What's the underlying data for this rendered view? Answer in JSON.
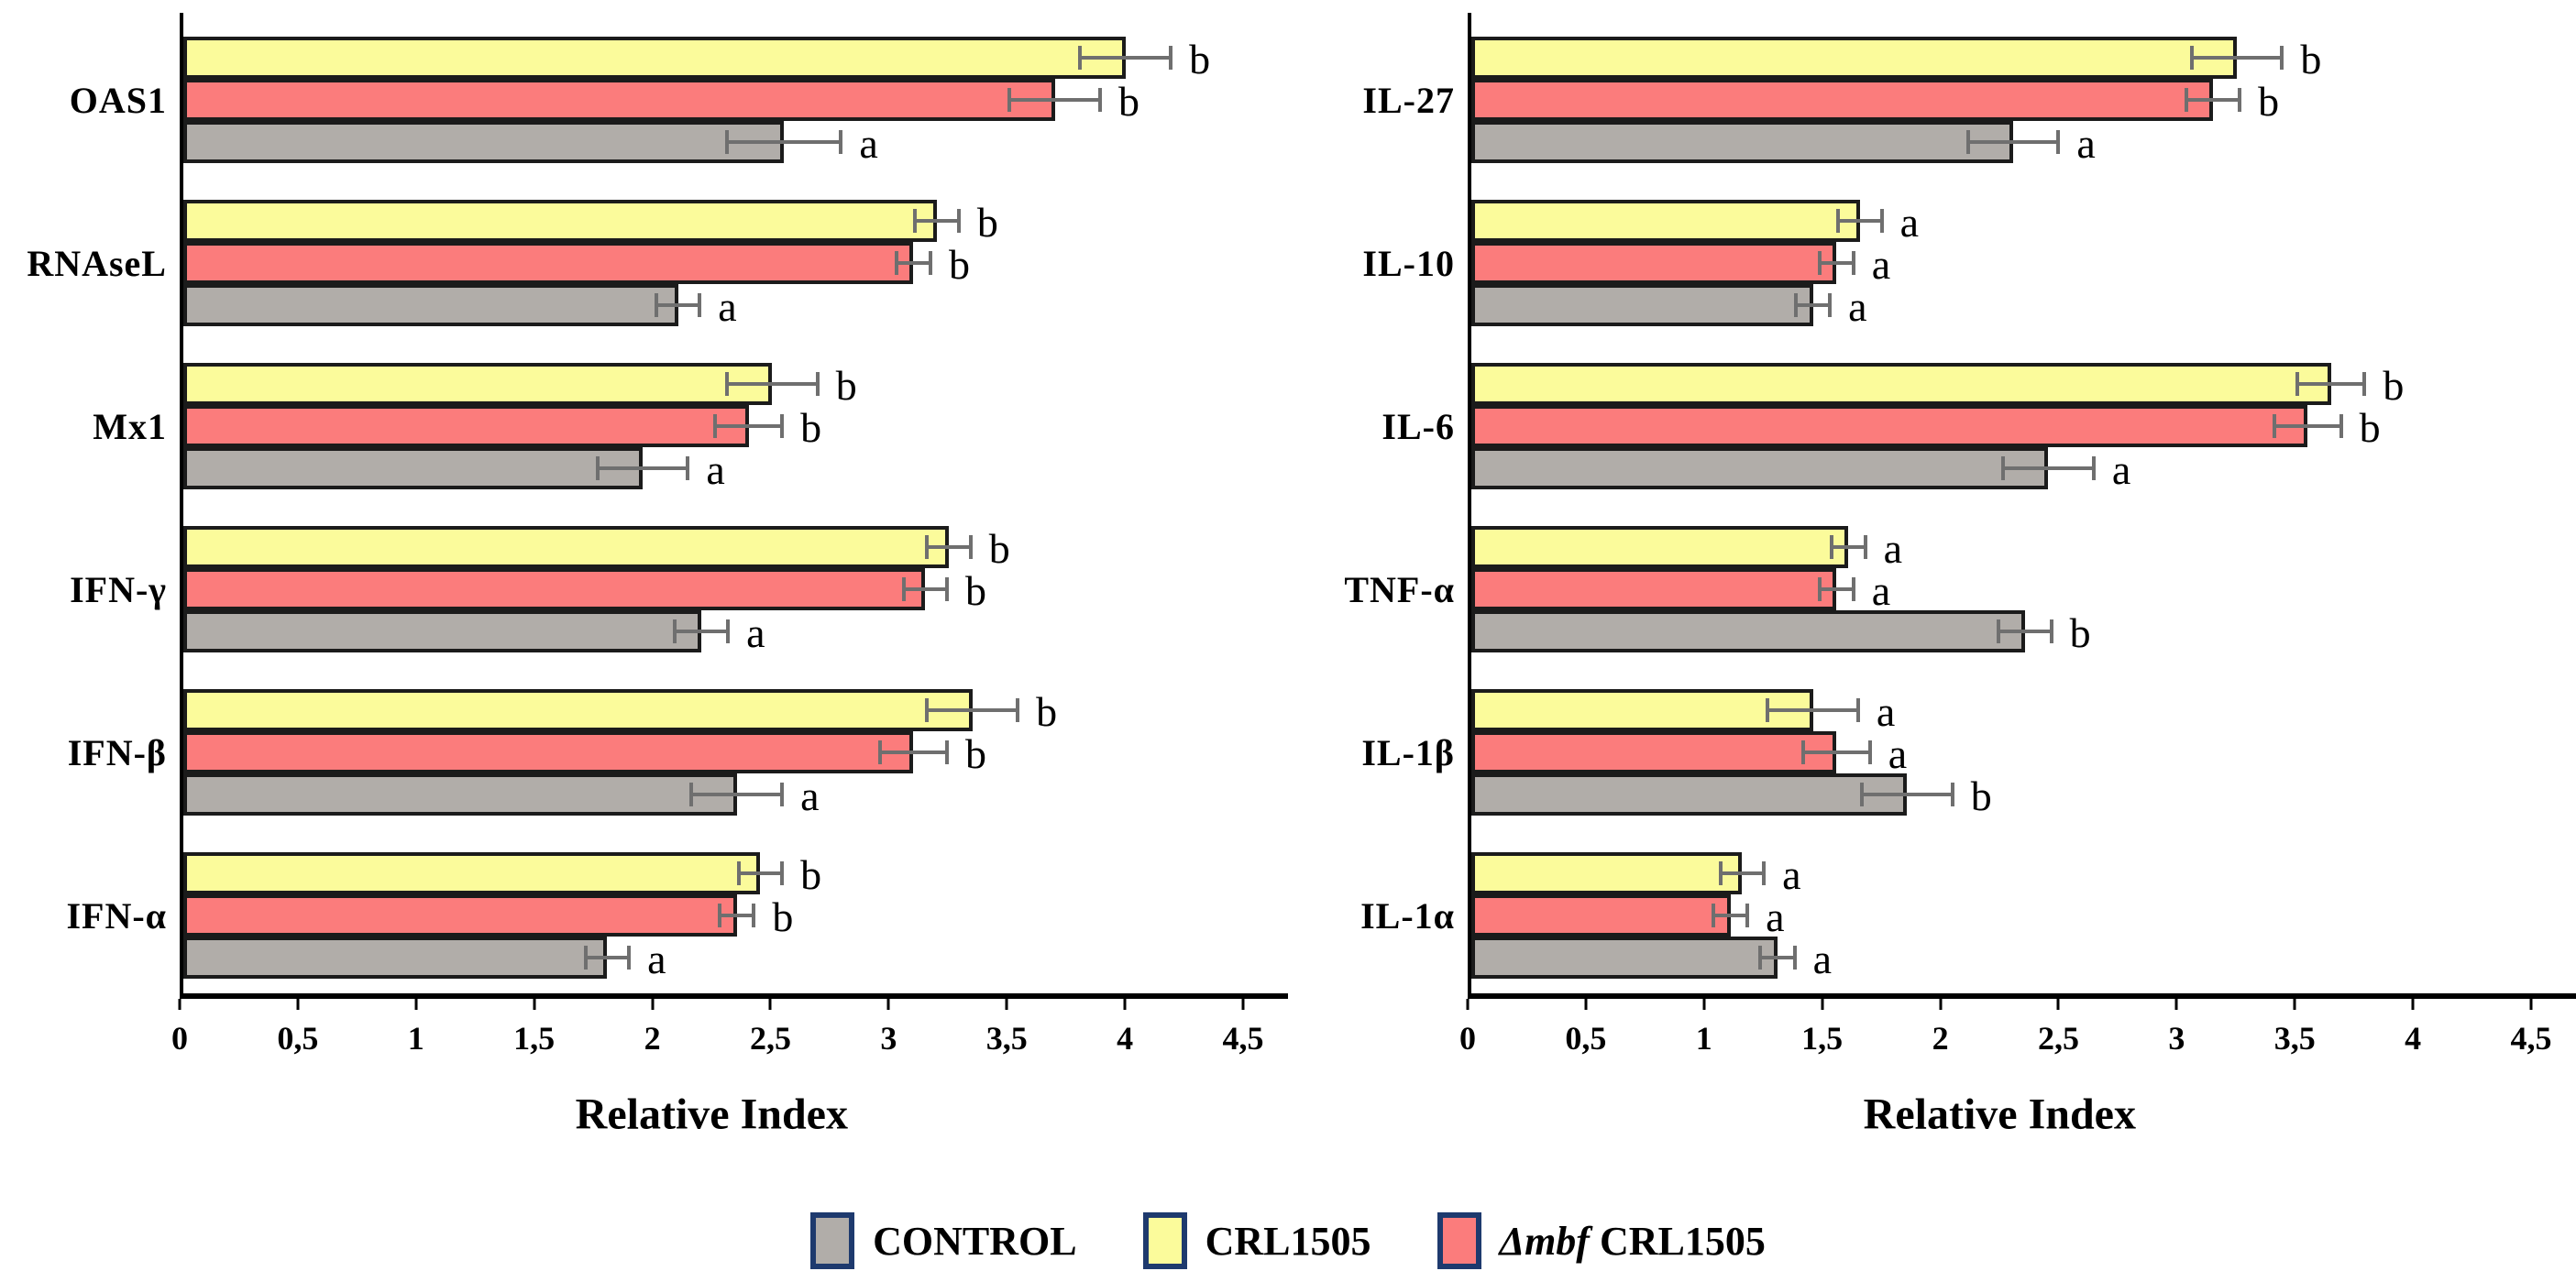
{
  "figure_title": "",
  "axis": {
    "tick_values": [
      0,
      0.5,
      1,
      1.5,
      2,
      2.5,
      3,
      3.5,
      4,
      4.5
    ],
    "xmax": 4.5,
    "full_scale": 4.69
  },
  "colors": {
    "control_gray": "#B1ADA9",
    "crl1505_yellow": "#FBFB9B",
    "mbf_red": "#FB7C7C",
    "bar_border": "#1b1b1b",
    "error_bar": "#6f6f6f",
    "axis_black": "#000000",
    "legend_swatch_border": "#1e3a6e"
  },
  "legend": {
    "items": [
      {
        "italic_prefix": "",
        "label": "CONTROL",
        "swatch_color": "#B1ADA9"
      },
      {
        "italic_prefix": "",
        "label": "CRL1505",
        "swatch_color": "#FBFB9B"
      },
      {
        "italic_prefix": "Δmbf",
        "label": " CRL1505",
        "swatch_color": "#FB7C7C"
      }
    ]
  },
  "chart_data": [
    {
      "type": "bar",
      "orientation": "horizontal",
      "panel": "left",
      "title": "",
      "xlabel": "Relative Index",
      "ylabel": "",
      "xlim": [
        0,
        4.5
      ],
      "grid": false,
      "xticks": [
        "0",
        "0,5",
        "1",
        "1,5",
        "2",
        "2,5",
        "3",
        "3,5",
        "4",
        "4,5"
      ],
      "categories": [
        "OAS1",
        "RNAseL",
        "Mx1",
        "IFN-γ",
        "IFN-β",
        "IFN-α"
      ],
      "series": [
        {
          "name": "CRL1505",
          "color": "#FBFB9B",
          "values": [
            4.0,
            3.2,
            2.5,
            3.25,
            3.35,
            2.45
          ],
          "errors": [
            0.2,
            0.1,
            0.2,
            0.1,
            0.2,
            0.1
          ],
          "letters": [
            "b",
            "b",
            "b",
            "b",
            "b",
            "b"
          ]
        },
        {
          "name": "Δmbf CRL1505",
          "color": "#FB7C7C",
          "values": [
            3.7,
            3.1,
            2.4,
            3.15,
            3.1,
            2.35
          ],
          "errors": [
            0.2,
            0.08,
            0.15,
            0.1,
            0.15,
            0.08
          ],
          "letters": [
            "b",
            "b",
            "b",
            "b",
            "b",
            "b"
          ]
        },
        {
          "name": "CONTROL",
          "color": "#B1ADA9",
          "values": [
            2.55,
            2.1,
            1.95,
            2.2,
            2.35,
            1.8
          ],
          "errors": [
            0.25,
            0.1,
            0.2,
            0.12,
            0.2,
            0.1
          ],
          "letters": [
            "a",
            "a",
            "a",
            "a",
            "a",
            "a"
          ]
        }
      ]
    },
    {
      "type": "bar",
      "orientation": "horizontal",
      "panel": "right",
      "title": "",
      "xlabel": "Relative Index",
      "ylabel": "",
      "xlim": [
        0,
        4.5
      ],
      "grid": false,
      "xticks": [
        "0",
        "0,5",
        "1",
        "1,5",
        "2",
        "2,5",
        "3",
        "3,5",
        "4",
        "4,5"
      ],
      "categories": [
        "IL-27",
        "IL-10",
        "IL-6",
        "TNF-α",
        "IL-1β",
        "IL-1α"
      ],
      "series": [
        {
          "name": "CRL1505",
          "color": "#FBFB9B",
          "values": [
            3.25,
            1.65,
            3.65,
            1.6,
            1.45,
            1.15
          ],
          "errors": [
            0.2,
            0.1,
            0.15,
            0.08,
            0.2,
            0.1
          ],
          "letters": [
            "b",
            "a",
            "b",
            "a",
            "a",
            "a"
          ]
        },
        {
          "name": "Δmbf CRL1505",
          "color": "#FB7C7C",
          "values": [
            3.15,
            1.55,
            3.55,
            1.55,
            1.55,
            1.1
          ],
          "errors": [
            0.12,
            0.08,
            0.15,
            0.08,
            0.15,
            0.08
          ],
          "letters": [
            "b",
            "a",
            "b",
            "a",
            "a",
            "a"
          ]
        },
        {
          "name": "CONTROL",
          "color": "#B1ADA9",
          "values": [
            2.3,
            1.45,
            2.45,
            2.35,
            1.85,
            1.3
          ],
          "errors": [
            0.2,
            0.08,
            0.2,
            0.12,
            0.2,
            0.08
          ],
          "letters": [
            "a",
            "a",
            "a",
            "b",
            "b",
            "a"
          ]
        }
      ]
    }
  ]
}
